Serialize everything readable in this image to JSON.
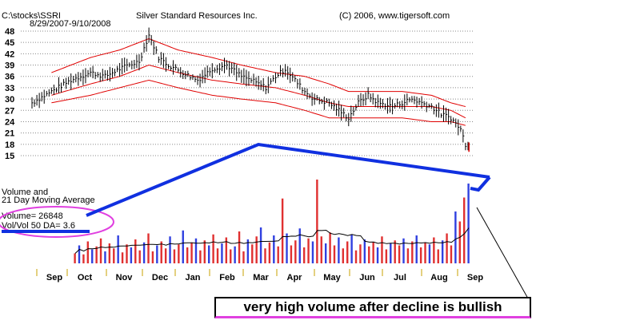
{
  "header": {
    "path": "C:\\stocks\\SSRI",
    "dates": "8/29/2007-9/10/2008",
    "company": "Silver Standard Resources Inc.",
    "copyright": "(C) 2006, www.tigersoft.com"
  },
  "volume_panel": {
    "label_line1": "Volume and",
    "label_line2": "21 Day Moving Average",
    "volume": "Volume= 26848",
    "ratio": "Vol/Vol 50 DA= 3.6"
  },
  "annotation": "very high volume after decline is bullish",
  "colors": {
    "bands": "#e00000",
    "blue_arrow": "#1030e0",
    "circle": "#e040e0",
    "volume_red": "#e03030",
    "volume_blue": "#3040e0"
  },
  "chart_data": {
    "type": "line",
    "ylim": [
      15,
      49
    ],
    "y_ticks": [
      "48",
      "45",
      "42",
      "39",
      "36",
      "33",
      "30",
      "27",
      "24",
      "21",
      "18",
      "15"
    ],
    "x_ticks": [
      "Sep",
      "Oct",
      "Nov",
      "Dec",
      "Jan",
      "Feb",
      "Mar",
      "Apr",
      "May",
      "Jun",
      "Jul",
      "Aug",
      "Sep"
    ],
    "price_nodes": [
      [
        0,
        29
      ],
      [
        4,
        32
      ],
      [
        8,
        35
      ],
      [
        12,
        37
      ],
      [
        15,
        36
      ],
      [
        18,
        38
      ],
      [
        22,
        40
      ],
      [
        24,
        47
      ],
      [
        26,
        41
      ],
      [
        28,
        39
      ],
      [
        31,
        37
      ],
      [
        34,
        35
      ],
      [
        37,
        38
      ],
      [
        40,
        39
      ],
      [
        43,
        36
      ],
      [
        45,
        35
      ],
      [
        48,
        33
      ],
      [
        50,
        36
      ],
      [
        52,
        38
      ],
      [
        54,
        35
      ],
      [
        56,
        32
      ],
      [
        58,
        30
      ],
      [
        61,
        29
      ],
      [
        63,
        27
      ],
      [
        65,
        25
      ],
      [
        67,
        29
      ],
      [
        69,
        31
      ],
      [
        71,
        29
      ],
      [
        74,
        28
      ],
      [
        76,
        29
      ],
      [
        78,
        30
      ],
      [
        80,
        29
      ],
      [
        82,
        28
      ],
      [
        84,
        26
      ],
      [
        86,
        25
      ],
      [
        88,
        22
      ],
      [
        89,
        18
      ]
    ],
    "middle_band": [
      [
        4,
        31
      ],
      [
        12,
        34
      ],
      [
        18,
        36
      ],
      [
        24,
        39
      ],
      [
        30,
        37
      ],
      [
        37,
        35
      ],
      [
        43,
        34
      ],
      [
        50,
        33
      ],
      [
        56,
        31
      ],
      [
        61,
        29
      ],
      [
        65,
        28
      ],
      [
        70,
        28
      ],
      [
        76,
        28
      ],
      [
        82,
        28
      ],
      [
        86,
        27
      ],
      [
        89,
        25
      ]
    ],
    "upper_band": [
      [
        4,
        37
      ],
      [
        12,
        41
      ],
      [
        18,
        43
      ],
      [
        24,
        46
      ],
      [
        30,
        43
      ],
      [
        37,
        41
      ],
      [
        43,
        39
      ],
      [
        50,
        37
      ],
      [
        56,
        36
      ],
      [
        61,
        34
      ],
      [
        65,
        32
      ],
      [
        70,
        32
      ],
      [
        76,
        32
      ],
      [
        82,
        31
      ],
      [
        86,
        29
      ],
      [
        89,
        28
      ]
    ],
    "lower_band": [
      [
        4,
        29
      ],
      [
        12,
        31
      ],
      [
        18,
        33
      ],
      [
        24,
        35
      ],
      [
        30,
        33
      ],
      [
        37,
        31
      ],
      [
        43,
        30
      ],
      [
        50,
        29
      ],
      [
        56,
        27
      ],
      [
        61,
        25
      ],
      [
        65,
        25
      ],
      [
        70,
        25
      ],
      [
        76,
        25
      ],
      [
        82,
        24
      ],
      [
        86,
        24
      ],
      [
        89,
        23
      ]
    ],
    "volume_values": [
      10,
      18,
      9,
      22,
      14,
      17,
      25,
      12,
      20,
      15,
      28,
      11,
      19,
      16,
      24,
      13,
      21,
      30,
      12,
      18,
      22,
      15,
      27,
      14,
      19,
      33,
      16,
      21,
      25,
      13,
      23,
      18,
      29,
      15,
      20,
      26,
      14,
      17,
      32,
      12,
      24,
      19,
      27,
      36,
      15,
      21,
      28,
      17,
      65,
      30,
      18,
      23,
      35,
      16,
      25,
      22,
      84,
      27,
      20,
      31,
      18,
      26,
      15,
      22,
      29,
      13,
      19,
      24,
      17,
      21,
      16,
      27,
      14,
      20,
      23,
      18,
      25,
      15,
      22,
      28,
      16,
      21,
      19,
      26,
      14,
      23,
      30,
      18,
      52,
      42,
      66,
      80
    ]
  }
}
